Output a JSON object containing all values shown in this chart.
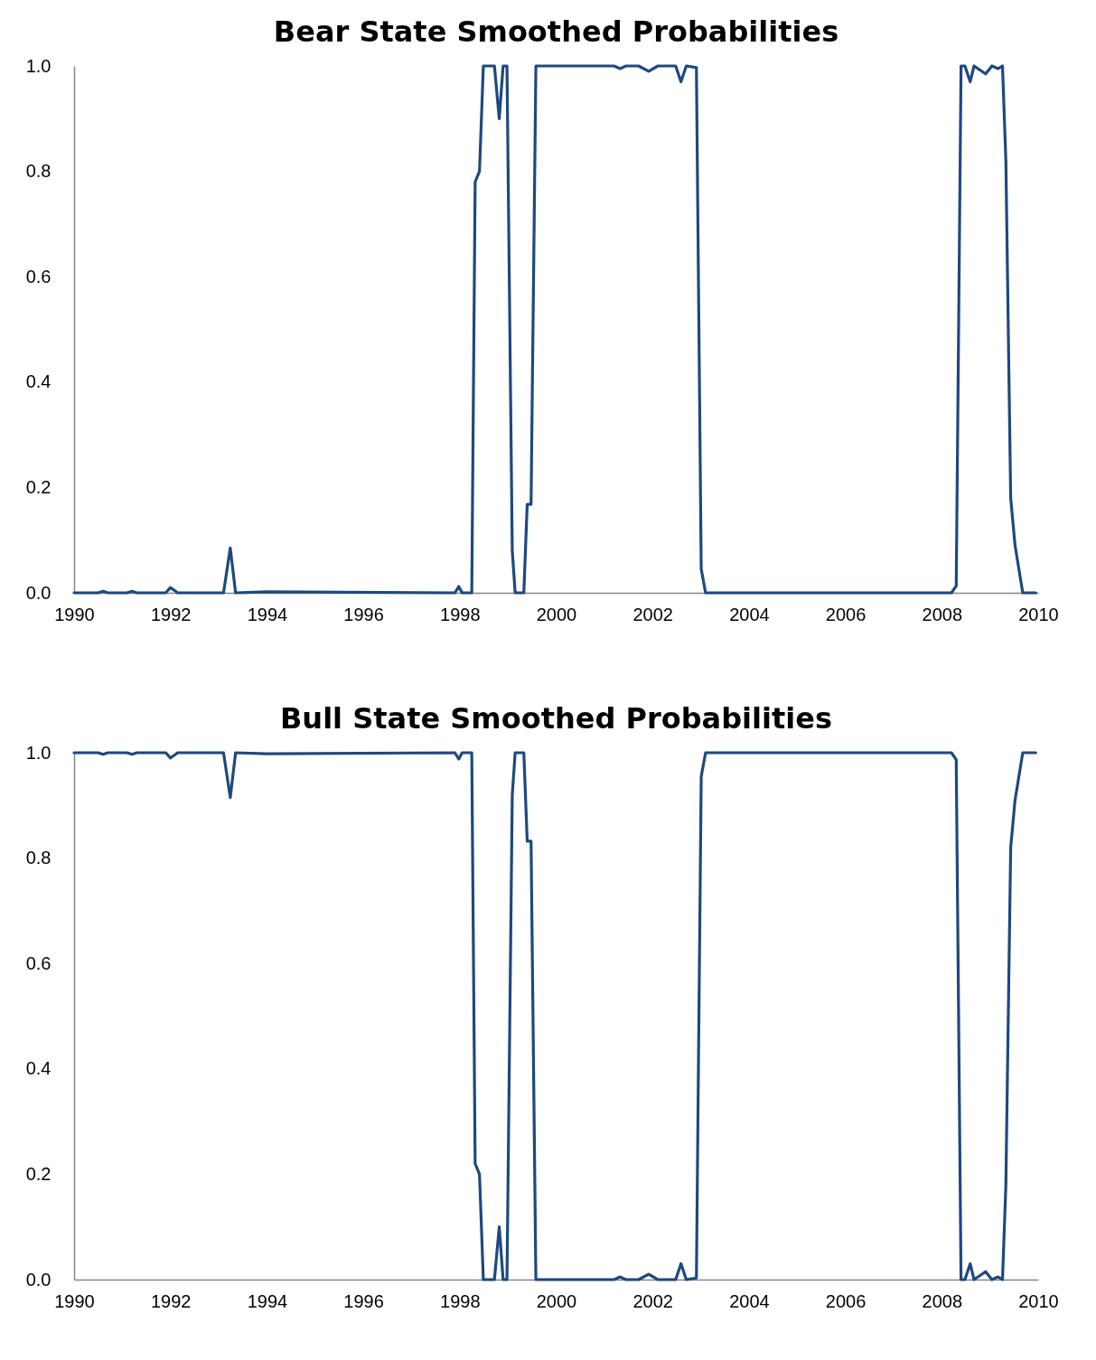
{
  "chart_data": [
    {
      "type": "line",
      "title": "Bear State Smoothed Probabilities",
      "x": [
        1990,
        1990.5,
        1990.6,
        1990.7,
        1991.1,
        1991.2,
        1991.3,
        1991.9,
        1992.0,
        1992.15,
        1993.1,
        1993.24,
        1993.35,
        1994,
        1997.9,
        1997.98,
        1998.05,
        1998.25,
        1998.32,
        1998.41,
        1998.49,
        1998.72,
        1998.82,
        1998.9,
        1998.98,
        1999.09,
        1999.15,
        1999.33,
        1999.4,
        1999.48,
        1999.58,
        2001.2,
        2001.33,
        2001.45,
        2001.71,
        2001.92,
        2002.11,
        2002.48,
        2002.59,
        2002.7,
        2002.91,
        2003.01,
        2003.1,
        2008.2,
        2008.3,
        2008.4,
        2008.48,
        2008.59,
        2008.67,
        2008.91,
        2009.04,
        2009.17,
        2009.26,
        2009.33,
        2009.43,
        2009.52,
        2009.68,
        2009.95
      ],
      "series": [
        {
          "color": "#1f497d",
          "values": [
            0,
            0,
            0.003,
            0,
            0,
            0.003,
            0,
            0,
            0.01,
            0,
            0,
            0.085,
            0,
            0.002,
            0,
            0.012,
            0,
            0,
            0.78,
            0.8,
            1,
            1,
            0.9,
            1,
            1,
            0.08,
            0,
            0,
            0.168,
            0.168,
            1,
            1,
            0.995,
            1,
            1,
            0.99,
            1,
            1,
            0.97,
            1,
            0.997,
            0.045,
            0,
            0,
            0.013,
            1,
            1,
            0.97,
            1,
            0.985,
            1,
            0.995,
            1,
            0.82,
            0.18,
            0.09,
            0,
            0
          ]
        }
      ],
      "xlim": [
        1990,
        2010
      ],
      "xticks": [
        1990,
        1992,
        1994,
        1996,
        1998,
        2000,
        2002,
        2004,
        2006,
        2008,
        2010
      ],
      "ylim": [
        0,
        1
      ],
      "yticks": [
        {
          "value": 0,
          "label": "0.0"
        },
        {
          "value": 0.2,
          "label": "0.2"
        },
        {
          "value": 0.4,
          "label": "0.4"
        },
        {
          "value": 0.6,
          "label": "0.6"
        },
        {
          "value": 0.8,
          "label": "0.8"
        },
        {
          "value": 1,
          "label": "1.0"
        }
      ]
    },
    {
      "type": "line",
      "title": "Bull State Smoothed Probabilities",
      "x": [
        1990,
        1990.5,
        1990.6,
        1990.7,
        1991.1,
        1991.2,
        1991.3,
        1991.9,
        1992.0,
        1992.15,
        1993.1,
        1993.24,
        1993.35,
        1994,
        1997.9,
        1997.98,
        1998.05,
        1998.25,
        1998.32,
        1998.41,
        1998.49,
        1998.72,
        1998.82,
        1998.9,
        1998.98,
        1999.09,
        1999.15,
        1999.33,
        1999.4,
        1999.48,
        1999.58,
        2001.2,
        2001.33,
        2001.45,
        2001.71,
        2001.92,
        2002.11,
        2002.48,
        2002.59,
        2002.7,
        2002.91,
        2003.01,
        2003.1,
        2008.2,
        2008.3,
        2008.4,
        2008.48,
        2008.59,
        2008.67,
        2008.91,
        2009.04,
        2009.17,
        2009.26,
        2009.33,
        2009.43,
        2009.52,
        2009.68,
        2009.95
      ],
      "series": [
        {
          "color": "#1f497d",
          "values": [
            1,
            1,
            0.997,
            1,
            1,
            0.997,
            1,
            1,
            0.99,
            1,
            1,
            0.915,
            1,
            0.998,
            1,
            0.988,
            1,
            1,
            0.22,
            0.2,
            0,
            0,
            0.1,
            0,
            0,
            0.92,
            1,
            1,
            0.832,
            0.832,
            0,
            0,
            0.005,
            0,
            0,
            0.01,
            0,
            0,
            0.03,
            0,
            0.003,
            0.955,
            1,
            1,
            0.987,
            0,
            0,
            0.03,
            0,
            0.015,
            0,
            0.005,
            0,
            0.18,
            0.82,
            0.91,
            1,
            1
          ]
        }
      ],
      "xlim": [
        1990,
        2010
      ],
      "xticks": [
        1990,
        1992,
        1994,
        1996,
        1998,
        2000,
        2002,
        2004,
        2006,
        2008,
        2010
      ],
      "ylim": [
        0,
        1
      ],
      "yticks": [
        {
          "value": 0,
          "label": "0.0"
        },
        {
          "value": 0.2,
          "label": "0.2"
        },
        {
          "value": 0.4,
          "label": "0.4"
        },
        {
          "value": 0.6,
          "label": "0.6"
        },
        {
          "value": 0.8,
          "label": "0.8"
        },
        {
          "value": 1,
          "label": "1.0"
        }
      ]
    }
  ]
}
